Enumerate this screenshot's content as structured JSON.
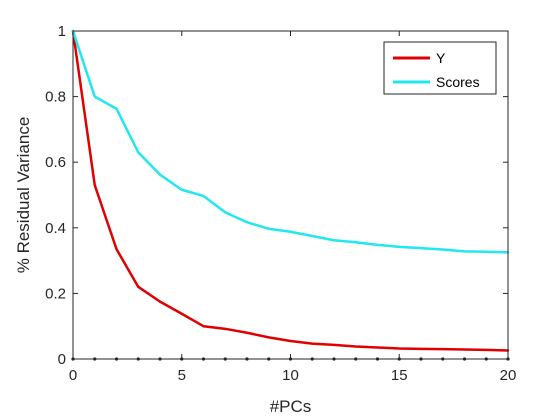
{
  "chart_data": {
    "type": "line",
    "title": "",
    "xlabel": "#PCs",
    "ylabel": "% Residual Variance",
    "xlim": [
      0,
      20
    ],
    "ylim": [
      0,
      1
    ],
    "xticks": [
      0,
      5,
      10,
      15,
      20
    ],
    "yticks": [
      0,
      0.2,
      0.4,
      0.6,
      0.8,
      1
    ],
    "xtick_labels": [
      "0",
      "5",
      "10",
      "15",
      "20"
    ],
    "ytick_labels": [
      "0",
      "0.2",
      "0.4",
      "0.6",
      "0.8",
      "1"
    ],
    "grid": false,
    "legend_position": "top-right",
    "x": [
      0,
      1,
      2,
      3,
      4,
      5,
      6,
      7,
      8,
      9,
      10,
      11,
      12,
      13,
      14,
      15,
      16,
      17,
      18,
      19,
      20
    ],
    "series": [
      {
        "name": "Y",
        "color": "#e00000",
        "values": [
          1.0,
          0.53,
          0.335,
          0.22,
          0.175,
          0.138,
          0.1,
          0.092,
          0.08,
          0.066,
          0.055,
          0.047,
          0.043,
          0.038,
          0.035,
          0.032,
          0.031,
          0.03,
          0.029,
          0.028,
          0.026
        ]
      },
      {
        "name": "Scores",
        "color": "#22e6f0",
        "values": [
          1.0,
          0.8,
          0.763,
          0.63,
          0.562,
          0.516,
          0.497,
          0.447,
          0.417,
          0.397,
          0.388,
          0.375,
          0.362,
          0.356,
          0.348,
          0.342,
          0.338,
          0.334,
          0.328,
          0.327,
          0.325
        ]
      }
    ]
  }
}
